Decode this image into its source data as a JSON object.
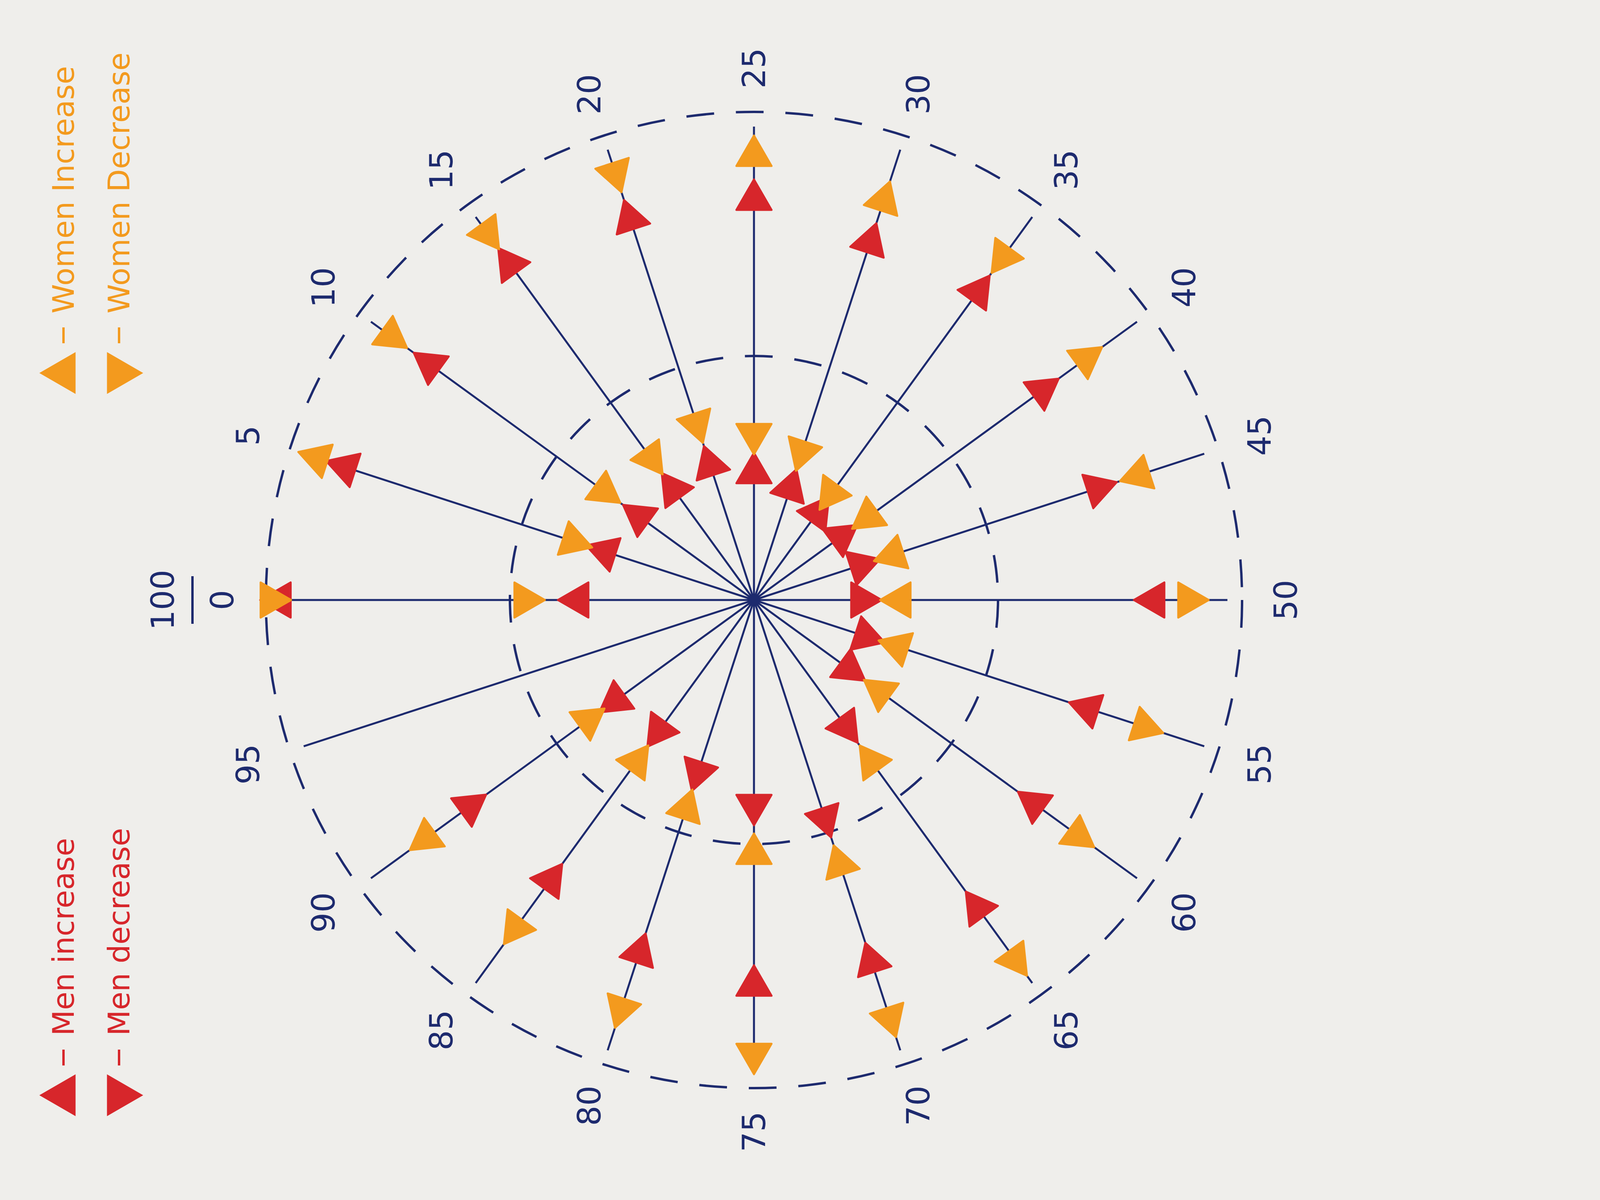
{
  "chart_data": {
    "type": "polar",
    "xlim": [
      0,
      100
    ],
    "xticks": [
      0,
      5,
      10,
      15,
      20,
      25,
      30,
      35,
      40,
      45,
      50,
      55,
      60,
      65,
      70,
      75,
      80,
      85,
      90,
      95,
      100
    ],
    "ylim": [
      0,
      100
    ],
    "yticks": [
      50,
      100
    ],
    "grid": true,
    "tick_labels": "x",
    "legend": "left",
    "series": [
      {
        "name": "Men increase",
        "color": "#d7262b",
        "marker": "triangle-up",
        "x": [
          0,
          0,
          5,
          5,
          10,
          10,
          15,
          15,
          20,
          20,
          25,
          25,
          30,
          30,
          35,
          35,
          40,
          40,
          45,
          45,
          50,
          55,
          60,
          65,
          70,
          75,
          80,
          85,
          90
        ],
        "values": [
          97,
          36,
          88,
          32,
          82,
          29,
          85,
          28,
          82,
          29,
          82,
          26,
          77,
          24,
          78,
          22,
          73,
          22,
          74,
          23,
          22,
          24,
          24,
          32,
          47,
          42,
          37,
          33,
          35
        ]
      },
      {
        "name": "Men decrease",
        "color": "#d7262b",
        "marker": "triangle-down",
        "x": [
          50,
          55,
          60,
          65,
          70,
          75,
          80,
          85,
          90
        ],
        "values": [
          82,
          72,
          71,
          78,
          78,
          79,
          76,
          71,
          72
        ]
      },
      {
        "name": "Women Increase",
        "color": "#f39a1e",
        "marker": "triangle-up",
        "x": [
          5,
          25,
          30,
          40,
          50,
          55,
          60,
          65,
          70,
          75,
          80,
          85,
          90
        ],
        "values": [
          94,
          91,
          86,
          84,
          89,
          84,
          82,
          91,
          90,
          93,
          88,
          83,
          83
        ]
      },
      {
        "name": "Women Decrease",
        "color": "#f39a1e",
        "marker": "triangle-down",
        "x": [
          0,
          0,
          5,
          10,
          10,
          15,
          15,
          20,
          20,
          25,
          30,
          35,
          35,
          40,
          45,
          45,
          50,
          55,
          60,
          65,
          70,
          75,
          80,
          85,
          90
        ],
        "values": [
          99,
          47,
          39,
          92,
          38,
          93,
          36,
          92,
          38,
          34,
          32,
          87,
          27,
          29,
          83,
          30,
          30,
          31,
          32,
          41,
          57,
          52,
          45,
          41,
          42
        ]
      }
    ]
  }
}
